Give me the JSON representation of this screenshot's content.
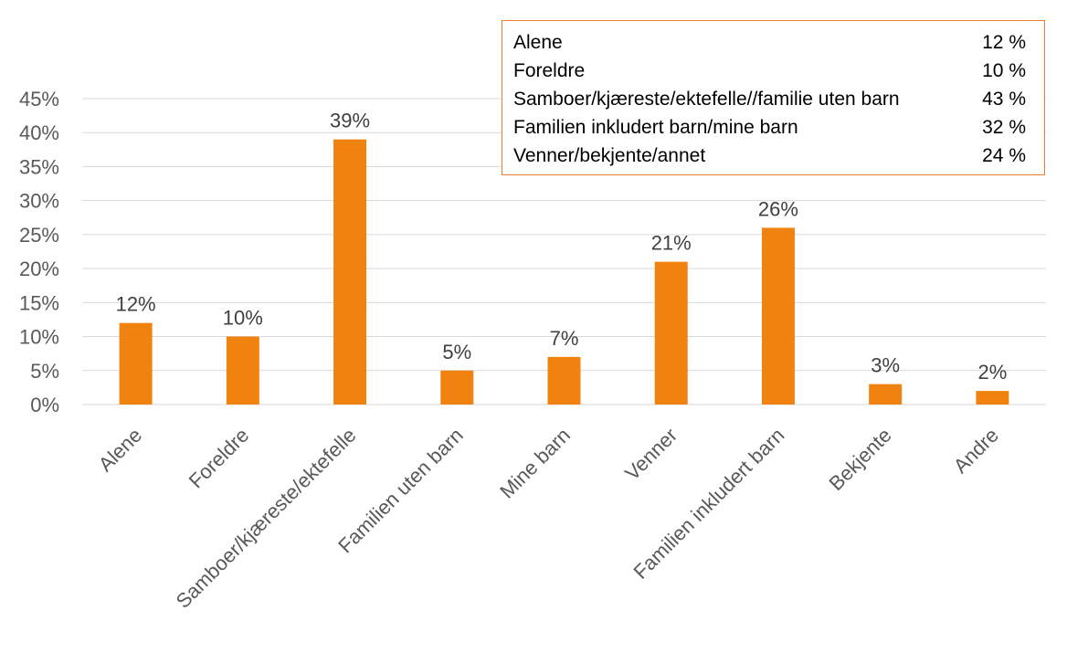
{
  "colors": {
    "bar": "#f0820f",
    "inset_border": "#ed7d31",
    "grid": "#d9d9d9"
  },
  "chart_data": {
    "type": "bar",
    "categories": [
      "Alene",
      "Foreldre",
      "Samboer/kjæreste/ektefelle",
      "Familien uten barn",
      "Mine barn",
      "Venner",
      "Familien inkludert barn",
      "Bekjente",
      "Andre"
    ],
    "values": [
      12,
      10,
      39,
      5,
      7,
      21,
      26,
      3,
      2
    ],
    "value_labels": [
      "12%",
      "10%",
      "39%",
      "5%",
      "7%",
      "21%",
      "26%",
      "3%",
      "2%"
    ],
    "yticks": [
      "0%",
      "5%",
      "10%",
      "15%",
      "20%",
      "25%",
      "30%",
      "35%",
      "40%",
      "45%"
    ],
    "ylim": [
      0,
      45
    ],
    "grid": true,
    "title": "",
    "xlabel": "",
    "ylabel": ""
  },
  "inset": {
    "rows": [
      {
        "label": "Alene",
        "value": "12 %"
      },
      {
        "label": "Foreldre",
        "value": "10 %"
      },
      {
        "label": "Samboer/kjæreste/ektefelle//familie uten barn",
        "value": "43 %"
      },
      {
        "label": "Familien inkludert barn/mine barn",
        "value": "32 %"
      },
      {
        "label": "Venner/bekjente/annet",
        "value": "24 %"
      }
    ]
  }
}
